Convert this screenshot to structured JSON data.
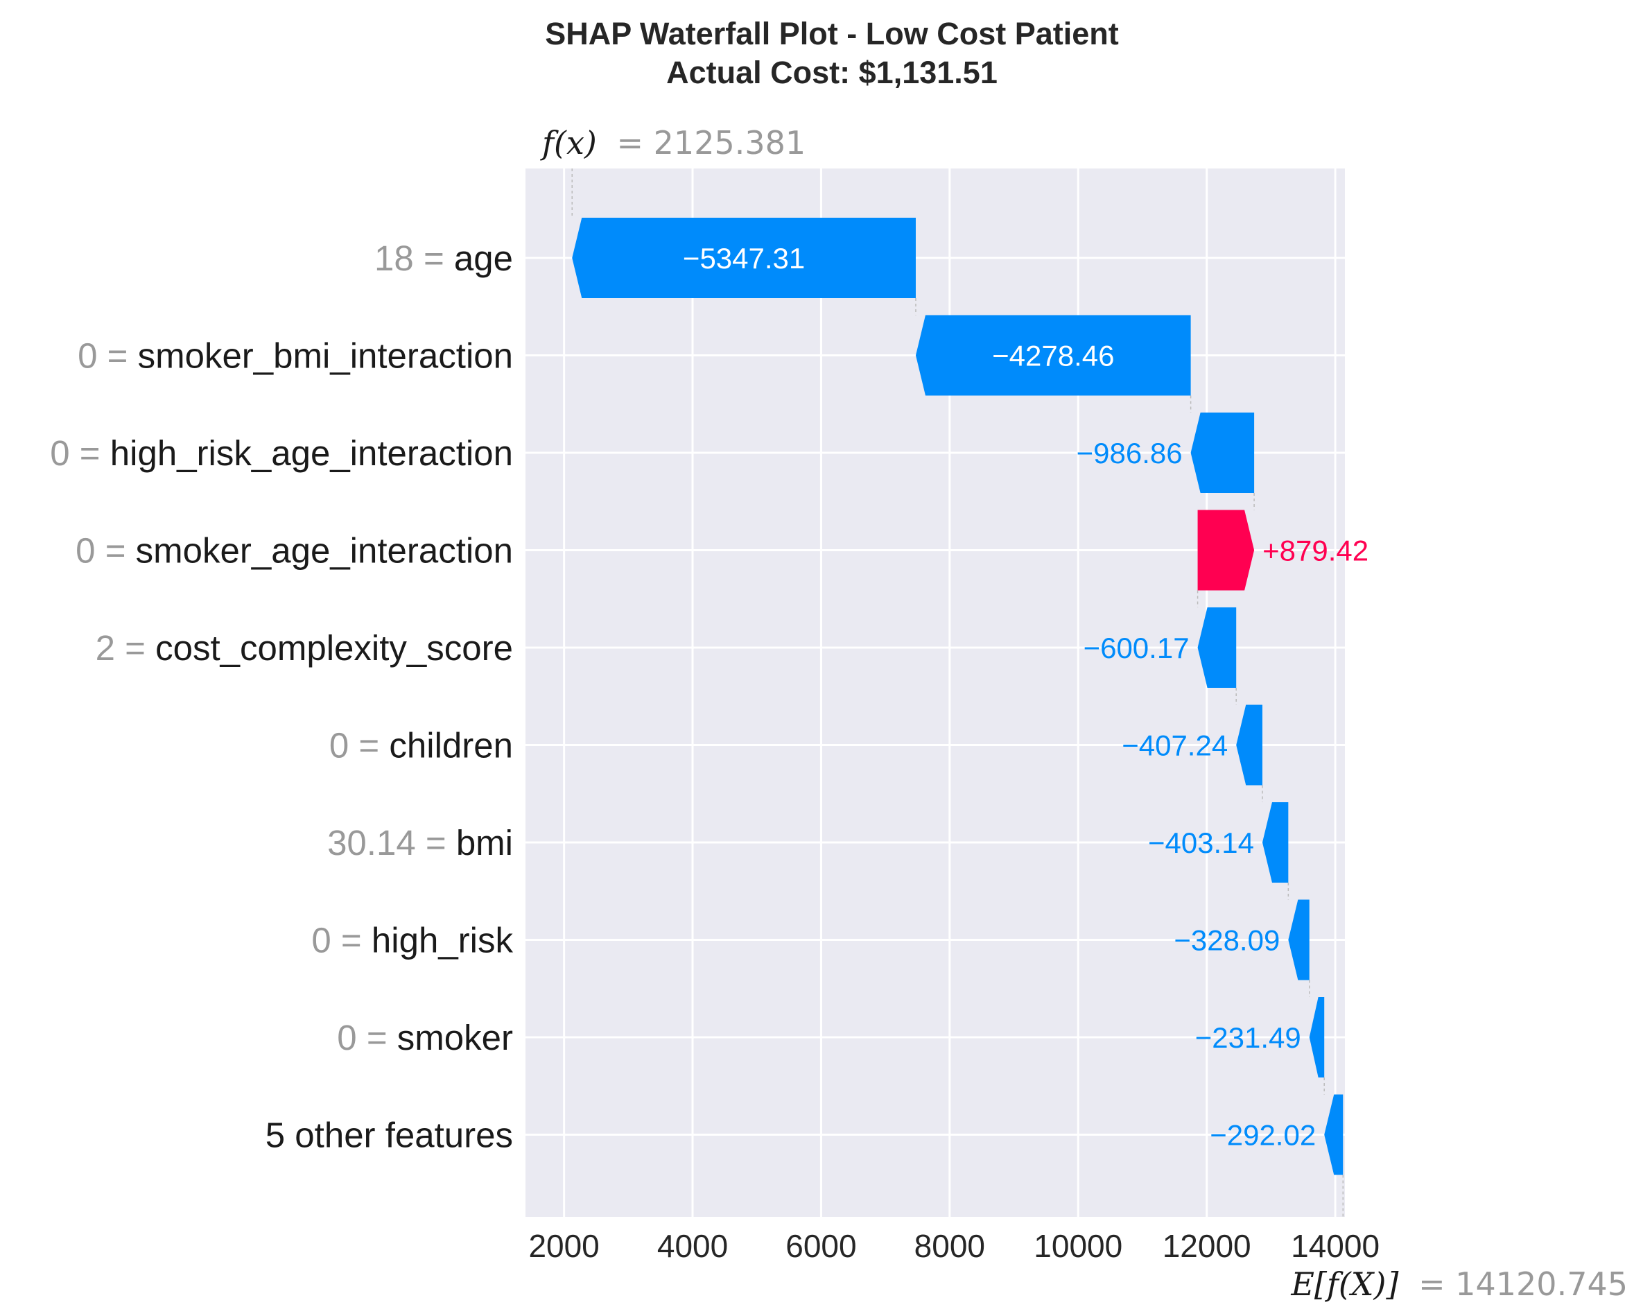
{
  "chart_data": {
    "type": "waterfall",
    "title_lines": [
      "SHAP Waterfall Plot - Low Cost Patient",
      "Actual Cost: $1,131.51"
    ],
    "fx_label": {
      "symbol": "f(x)",
      "value": "= 2125.381"
    },
    "efx_label": {
      "symbol": "E[f(X)]",
      "value": "= 14120.745"
    },
    "fx": 2125.381,
    "base_value": 14120.745,
    "xlim": [
      1400,
      14150
    ],
    "xticks": [
      2000,
      4000,
      6000,
      8000,
      10000,
      12000,
      14000
    ],
    "xtick_labels": [
      "2000",
      "4000",
      "6000",
      "8000",
      "10000",
      "12000",
      "14000"
    ],
    "features": [
      {
        "value": "18",
        "name": "age",
        "shap": -5347.31,
        "label": "−5347.31"
      },
      {
        "value": "0",
        "name": "smoker_bmi_interaction",
        "shap": -4278.46,
        "label": "−4278.46"
      },
      {
        "value": "0",
        "name": "high_risk_age_interaction",
        "shap": -986.86,
        "label": "−986.86"
      },
      {
        "value": "0",
        "name": "smoker_age_interaction",
        "shap": 879.42,
        "label": "+879.42"
      },
      {
        "value": "2",
        "name": "cost_complexity_score",
        "shap": -600.17,
        "label": "−600.17"
      },
      {
        "value": "0",
        "name": "children",
        "shap": -407.24,
        "label": "−407.24"
      },
      {
        "value": "30.14",
        "name": "bmi",
        "shap": -403.14,
        "label": "−403.14"
      },
      {
        "value": "0",
        "name": "high_risk",
        "shap": -328.09,
        "label": "−328.09"
      },
      {
        "value": "0",
        "name": "smoker",
        "shap": -231.49,
        "label": "−231.49"
      },
      {
        "value": "",
        "name": "5 other features",
        "shap": -292.02,
        "label": "−292.02"
      }
    ],
    "colors": {
      "negative": "#008bfb",
      "positive": "#ff0051",
      "background": "#eaeaf2",
      "grid": "#ffffff"
    },
    "grid": true
  }
}
